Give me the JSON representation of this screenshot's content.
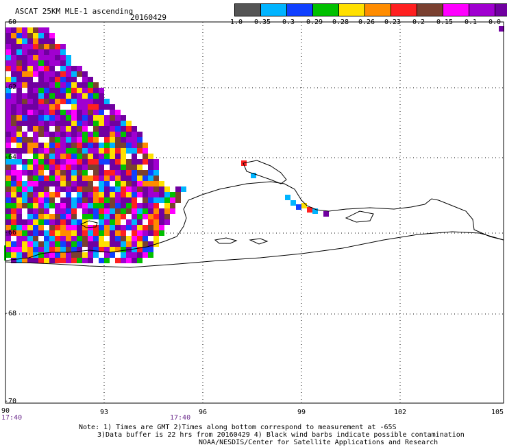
{
  "header": {
    "title": "ASCAT 25KM MLE-1 ascending",
    "date": "20160429"
  },
  "colorbar": {
    "labels": [
      "-1.0",
      "-0.35",
      "-0.3",
      "-0.29",
      "-0.28",
      "-0.26",
      "-0.23",
      "-0.2",
      "-0.15",
      "-0.1",
      "0.0"
    ],
    "colors": [
      "#555555",
      "#00b4ff",
      "#1040ff",
      "#00c000",
      "#ffe000",
      "#ff8c00",
      "#ff2020",
      "#7a4030",
      "#ff00ff",
      "#a000d0",
      "#7000a0"
    ]
  },
  "axes": {
    "lat_labels": [
      "-60",
      "-62",
      "-64",
      "-66",
      "-68",
      "-70"
    ],
    "lon_labels": [
      "90",
      "93",
      "96",
      "99",
      "102",
      "105"
    ],
    "time_labels": [
      "17:40",
      "17:40"
    ]
  },
  "footer": {
    "line1": "Note: 1) Times are GMT 2)Times along bottom correspond to measurement at -65S",
    "line2": "3)Data buffer is 22 hrs from 20160429 4) Black wind barbs indicate possible contamination",
    "line3": "NOAA/NESDIS/Center for Satellite Applications and Research"
  }
}
